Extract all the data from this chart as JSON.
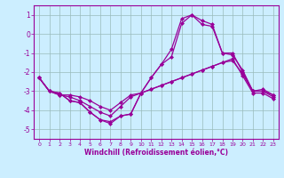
{
  "x": [
    0,
    1,
    2,
    3,
    4,
    5,
    6,
    7,
    8,
    9,
    10,
    11,
    12,
    13,
    14,
    15,
    16,
    17,
    18,
    19,
    20,
    21,
    22,
    23
  ],
  "line1": [
    -2.3,
    -3.0,
    -3.1,
    -3.5,
    -3.6,
    -4.1,
    -4.5,
    -4.6,
    -4.3,
    -4.2,
    -3.1,
    -2.3,
    -1.6,
    -0.8,
    0.8,
    1.0,
    0.7,
    0.5,
    -1.0,
    -1.0,
    -2.0,
    -3.0,
    -3.0,
    -3.2
  ],
  "line2": [
    -2.3,
    -3.0,
    -3.1,
    -3.5,
    -3.6,
    -4.1,
    -4.5,
    -4.7,
    -4.3,
    -4.2,
    -3.1,
    -2.3,
    -1.6,
    -1.2,
    0.55,
    1.0,
    0.5,
    0.4,
    -1.0,
    -1.1,
    -1.9,
    -3.0,
    -2.9,
    -3.2
  ],
  "line3": [
    -2.3,
    -3.0,
    -3.2,
    -3.2,
    -3.3,
    -3.5,
    -3.8,
    -4.0,
    -3.6,
    -3.2,
    -3.1,
    -2.9,
    -2.7,
    -2.5,
    -2.3,
    -2.1,
    -1.9,
    -1.7,
    -1.5,
    -1.4,
    -2.1,
    -3.0,
    -3.0,
    -3.3
  ],
  "line4": [
    -2.3,
    -3.0,
    -3.2,
    -3.3,
    -3.5,
    -3.8,
    -4.1,
    -4.3,
    -3.8,
    -3.3,
    -3.1,
    -2.9,
    -2.7,
    -2.5,
    -2.3,
    -2.1,
    -1.9,
    -1.7,
    -1.5,
    -1.3,
    -2.2,
    -3.1,
    -3.1,
    -3.4
  ],
  "bg_color": "#cceeff",
  "line_color": "#990099",
  "grid_color": "#99bbbb",
  "xlabel": "Windchill (Refroidissement éolien,°C)",
  "ylim": [
    -5.5,
    1.5
  ],
  "xlim": [
    -0.5,
    23.5
  ],
  "yticks": [
    -5,
    -4,
    -3,
    -2,
    -1,
    0,
    1
  ],
  "xticks": [
    0,
    1,
    2,
    3,
    4,
    5,
    6,
    7,
    8,
    9,
    10,
    11,
    12,
    13,
    14,
    15,
    16,
    17,
    18,
    19,
    20,
    21,
    22,
    23
  ],
  "markersize": 2.5,
  "linewidth": 0.9
}
